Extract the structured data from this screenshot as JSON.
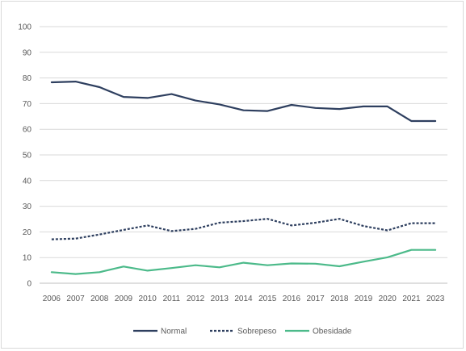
{
  "chart_data": {
    "type": "line",
    "title": "",
    "xlabel": "",
    "ylabel": "",
    "ylim": [
      0,
      100
    ],
    "yticks": [
      0,
      10,
      20,
      30,
      40,
      50,
      60,
      70,
      80,
      90,
      100
    ],
    "grid": true,
    "legend_position": "bottom",
    "categories": [
      "2006",
      "2007",
      "2008",
      "2009",
      "2010",
      "2011",
      "2012",
      "2013",
      "2014",
      "2015",
      "2016",
      "2017",
      "2018",
      "2019",
      "2020",
      "2021",
      "2023"
    ],
    "series": [
      {
        "name": "Normal",
        "color": "#2e3f5f",
        "dash": "solid",
        "values": [
          78.3,
          78.6,
          76.4,
          72.6,
          72.2,
          73.7,
          71.2,
          69.7,
          67.4,
          67.1,
          69.5,
          68.3,
          67.9,
          68.9,
          68.9,
          63.2,
          63.2
        ]
      },
      {
        "name": "Sobrepeso",
        "color": "#2e3f5f",
        "dash": "dashed",
        "values": [
          17.1,
          17.4,
          19.0,
          20.8,
          22.5,
          20.3,
          21.2,
          23.6,
          24.2,
          25.1,
          22.5,
          23.6,
          25.1,
          22.3,
          20.6,
          23.4,
          23.4
        ]
      },
      {
        "name": "Obesidade",
        "color": "#4cba8a",
        "dash": "solid",
        "values": [
          4.3,
          3.6,
          4.3,
          6.5,
          4.9,
          5.9,
          7.0,
          6.2,
          8.0,
          7.0,
          7.7,
          7.6,
          6.6,
          8.4,
          10.1,
          13.0,
          13.0
        ]
      }
    ]
  }
}
